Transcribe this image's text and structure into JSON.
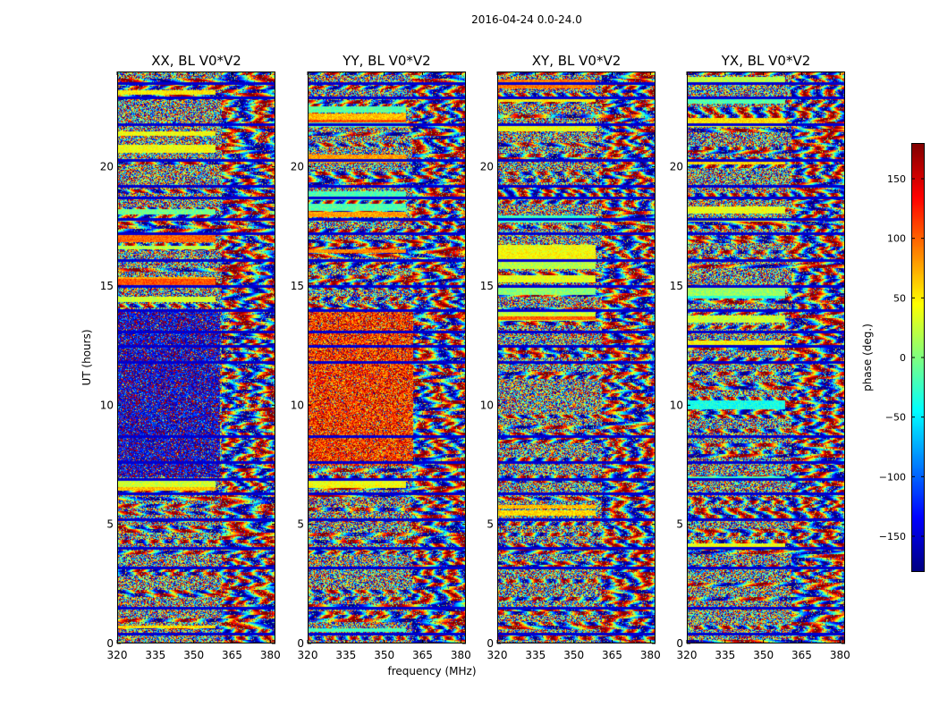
{
  "chart_data": {
    "type": "heatmap",
    "suptitle": "2016-04-24 0.0-24.0",
    "xlabel": "frequency (MHz)",
    "ylabel": "UT (hours)",
    "xlim": [
      320,
      382
    ],
    "ylim": [
      0,
      24
    ],
    "xticks": [
      320,
      335,
      350,
      365,
      380
    ],
    "yticks": [
      0,
      5,
      10,
      15,
      20
    ],
    "panels": [
      {
        "title": "XX, BL V0*V2",
        "polarization": "XX",
        "seed": 11,
        "slow_band": {
          "from_hours": 7.0,
          "to_hours": 14.0,
          "until_mhz": 360,
          "phase_deg": -150
        }
      },
      {
        "title": "YY, BL V0*V2",
        "polarization": "YY",
        "seed": 23,
        "slow_band": {
          "from_hours": 7.5,
          "to_hours": 14.0,
          "until_mhz": 361,
          "phase_deg": 120
        }
      },
      {
        "title": "XY, BL V0*V2",
        "polarization": "XY",
        "seed": 37,
        "slow_band": null
      },
      {
        "title": "YX, BL V0*V2",
        "polarization": "YX",
        "seed": 53,
        "slow_band": null
      }
    ],
    "flagged_hours": [
      0.4,
      1.5,
      3.2,
      4.0,
      5.2,
      6.3,
      6.9,
      7.6,
      8.7,
      11.8,
      12.5,
      13.1,
      14.0,
      15.0,
      16.1,
      17.2,
      17.8,
      18.7,
      19.2,
      20.3,
      21.8,
      22.9,
      23.5
    ],
    "colorbar": {
      "label": "phase (deg.)",
      "range": [
        -180,
        180
      ],
      "ticks": [
        150,
        100,
        50,
        0,
        -50,
        -100,
        -150
      ],
      "tick_labels": [
        "150",
        "100",
        "50",
        "0",
        "−50",
        "−100",
        "−150"
      ],
      "colormap": "jet"
    }
  }
}
